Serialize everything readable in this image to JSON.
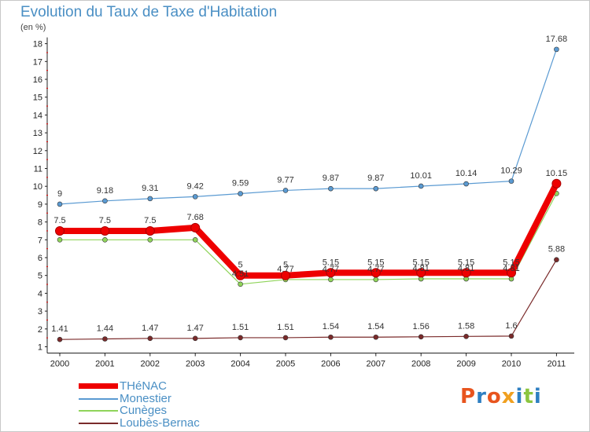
{
  "title": "Evolution du Taux de Taxe d'Habitation",
  "subtitle": "(en %)",
  "logo": {
    "text": "Proxiti",
    "colors": [
      "#e8541e",
      "#2e7fc2",
      "#e8541e",
      "#f0a020",
      "#2e7fc2",
      "#8bc53f",
      "#2e7fc2"
    ]
  },
  "chart_data": {
    "type": "line",
    "x": [
      "2000",
      "2001",
      "2002",
      "2003",
      "2004",
      "2005",
      "2006",
      "2007",
      "2008",
      "2009",
      "2010",
      "2011"
    ],
    "ylim": [
      1,
      18
    ],
    "yticks": [
      "1",
      "2",
      "3",
      "4",
      "5",
      "6",
      "7",
      "8",
      "9",
      "10",
      "11",
      "12",
      "13",
      "14",
      "15",
      "16",
      "17",
      "18"
    ],
    "grid": false,
    "legend_position": "bottom-left",
    "series": [
      {
        "name": "THéNAC",
        "color": "#ee0000",
        "values": [
          7.5,
          7.5,
          7.5,
          7.68,
          5,
          5,
          5.15,
          5.15,
          5.15,
          5.15,
          5.15,
          10.15
        ],
        "labels": [
          "7.5",
          "7.5",
          "7.5",
          "7.68",
          "5",
          "5",
          "5.15",
          "5.15",
          "5.15",
          "5.15",
          "5.15",
          "10.15"
        ]
      },
      {
        "name": "Monestier",
        "color": "#5a9ad2",
        "values": [
          9,
          9.18,
          9.31,
          9.42,
          9.59,
          9.77,
          9.87,
          9.87,
          10.01,
          10.14,
          10.29,
          17.68
        ],
        "labels": [
          "9",
          "9.18",
          "9.31",
          "9.42",
          "9.59",
          "9.77",
          "9.87",
          "9.87",
          "10.01",
          "10.14",
          "10.29",
          "17.68"
        ]
      },
      {
        "name": "Cunèges",
        "color": "#8fd45a",
        "values": [
          7,
          7,
          7,
          7,
          4.51,
          4.77,
          4.77,
          4.77,
          4.81,
          4.81,
          4.81,
          9.6
        ],
        "labels": [
          "",
          "",
          "",
          "",
          "4.51",
          "4.77",
          "4.77",
          "4.77",
          "4.81",
          "4.81",
          "4.81",
          ""
        ]
      },
      {
        "name": "Loubès-Bernac",
        "color": "#7a2a2a",
        "values": [
          1.41,
          1.44,
          1.47,
          1.47,
          1.51,
          1.51,
          1.54,
          1.54,
          1.56,
          1.58,
          1.6,
          5.88
        ],
        "labels": [
          "1.41",
          "1.44",
          "1.47",
          "1.47",
          "1.51",
          "1.51",
          "1.54",
          "1.54",
          "1.56",
          "1.58",
          "1.6",
          "5.88"
        ]
      }
    ]
  }
}
